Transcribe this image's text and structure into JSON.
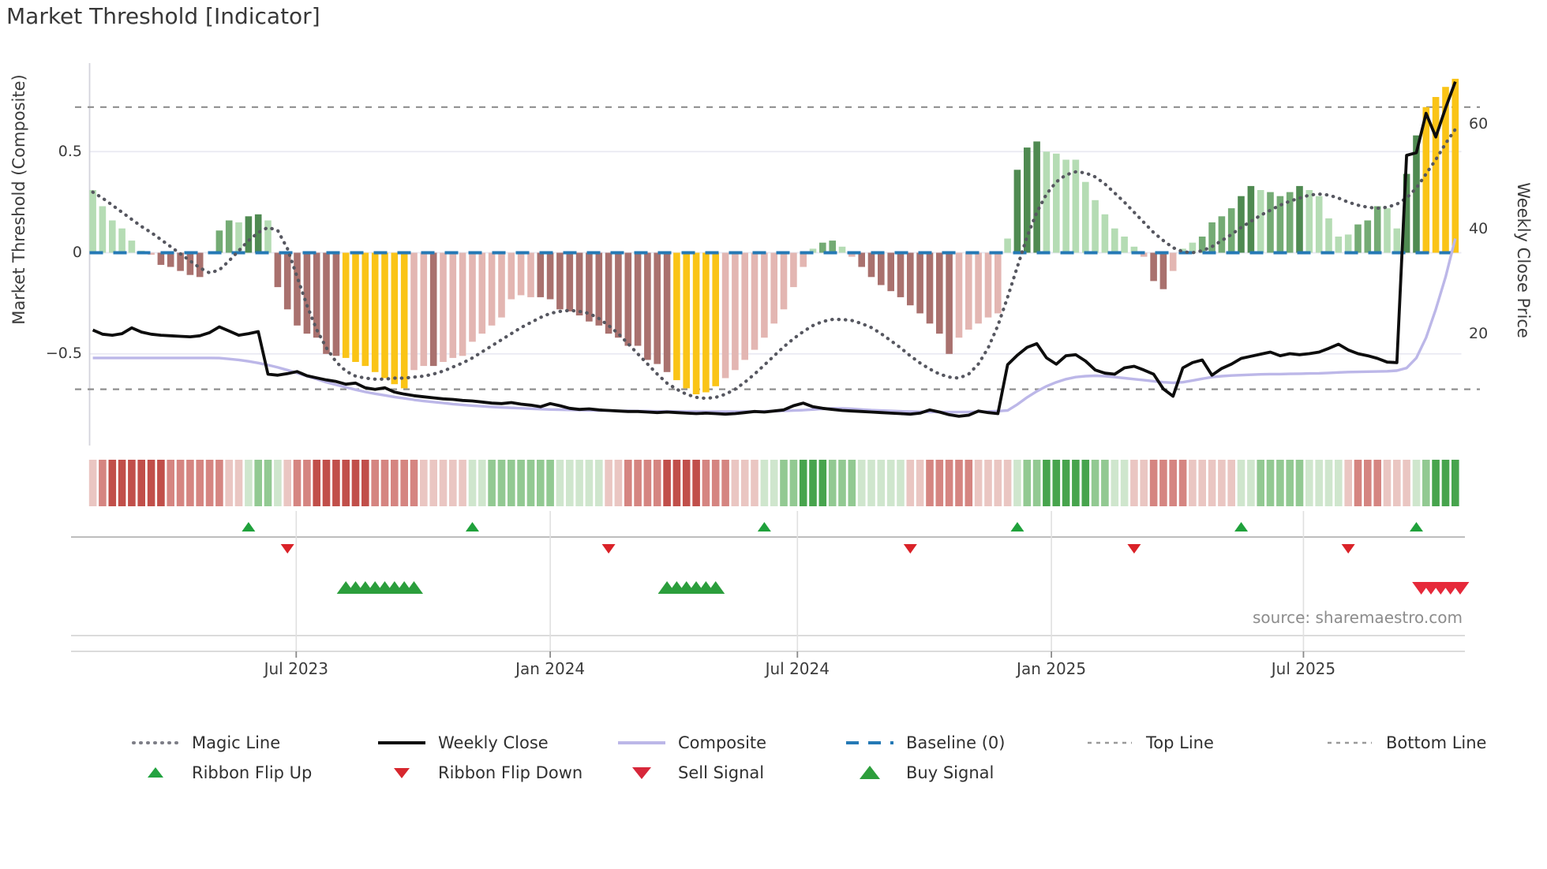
{
  "title": "Market Threshold [Indicator]",
  "source_note": "source: sharemaestro.com",
  "colors": {
    "bar_light_green": "#b5dcb4",
    "bar_green": "#74ab74",
    "bar_dark_green": "#4f8a51",
    "bar_red": "#a9716e",
    "bar_pink": "#e3b6b2",
    "bar_gold": "#fac417",
    "baseline_blue": "#2579b5",
    "magic_line": "#565760",
    "weekly_close": "#0d0d0d",
    "composite": "#bcb7e8",
    "guide_gray": "#8f8f8f",
    "grid": "#e9e9f2",
    "ribbon_dark_red": "#c14f4a",
    "ribbon_red": "#d58581",
    "ribbon_light_red": "#eac6c2",
    "ribbon_light_green": "#cfe6cd",
    "ribbon_green": "#92c992",
    "ribbon_dark_green": "#47a44d",
    "flip_up": "#1fa13b",
    "flip_down": "#da2228",
    "buy": "#2b9e3c",
    "sell": "#e6293a"
  },
  "chart_data": {
    "type": "bar",
    "title": "Market Threshold [Indicator]",
    "left_axis": {
      "label": "Market Threshold (Composite)",
      "ticks": [
        "0.5",
        "0",
        "−0.5"
      ],
      "tick_values": [
        0.5,
        0,
        -0.5
      ],
      "top_line": 0.72,
      "bottom_line": -0.675,
      "baseline": 0
    },
    "right_axis": {
      "label": "Weekly Close Price",
      "ticks": [
        "60",
        "40",
        "20"
      ],
      "tick_values": [
        60,
        40,
        20
      ]
    },
    "x_axis": {
      "tick_labels": [
        "Jul 2023",
        "Jan 2024",
        "Jul 2024",
        "Jan 2025",
        "Jul 2025"
      ],
      "tick_weeks": [
        20.9,
        47.0,
        72.4,
        98.5,
        124.4
      ]
    },
    "histogram": {
      "values": [
        0.31,
        0.23,
        0.16,
        0.12,
        0.06,
        0.01,
        -0.01,
        -0.06,
        -0.07,
        -0.09,
        -0.11,
        -0.12,
        0,
        0.11,
        0.16,
        0.15,
        0.18,
        0.19,
        0.16,
        -0.17,
        -0.28,
        -0.36,
        -0.4,
        -0.42,
        -0.5,
        -0.51,
        -0.52,
        -0.54,
        -0.56,
        -0.59,
        -0.62,
        -0.65,
        -0.67,
        -0.58,
        -0.56,
        -0.56,
        -0.54,
        -0.52,
        -0.51,
        -0.44,
        -0.4,
        -0.36,
        -0.32,
        -0.23,
        -0.21,
        -0.22,
        -0.22,
        -0.23,
        -0.28,
        -0.29,
        -0.31,
        -0.34,
        -0.36,
        -0.4,
        -0.42,
        -0.46,
        -0.46,
        -0.53,
        -0.55,
        -0.59,
        -0.63,
        -0.67,
        -0.7,
        -0.69,
        -0.66,
        -0.62,
        -0.58,
        -0.53,
        -0.48,
        -0.42,
        -0.35,
        -0.28,
        -0.17,
        -0.07,
        0.02,
        0.05,
        0.06,
        0.03,
        -0.02,
        -0.07,
        -0.12,
        -0.16,
        -0.19,
        -0.22,
        -0.26,
        -0.3,
        -0.35,
        -0.4,
        -0.5,
        -0.42,
        -0.38,
        -0.35,
        -0.32,
        -0.3,
        0.07,
        0.41,
        0.52,
        0.55,
        0.5,
        0.49,
        0.46,
        0.46,
        0.35,
        0.26,
        0.19,
        0.12,
        0.08,
        0.03,
        -0.02,
        -0.14,
        -0.18,
        -0.09,
        0.02,
        0.05,
        0.08,
        0.15,
        0.18,
        0.22,
        0.28,
        0.33,
        0.31,
        0.3,
        0.28,
        0.3,
        0.33,
        0.31,
        0.28,
        0.17,
        0.08,
        0.09,
        0.14,
        0.16,
        0.23,
        0.22,
        0.12,
        0.39,
        0.58,
        0.72,
        0.77,
        0.82,
        0.86
      ],
      "classes": [
        "lg",
        "lg",
        "lg",
        "lg",
        "lg",
        "lg",
        "p",
        "r",
        "r",
        "r",
        "r",
        "r",
        "lg",
        "g",
        "g",
        "lg",
        "dg",
        "dg",
        "lg",
        "r",
        "r",
        "r",
        "r",
        "r",
        "r",
        "r",
        "au",
        "au",
        "au",
        "au",
        "au",
        "au",
        "au",
        "p",
        "p",
        "r",
        "p",
        "p",
        "p",
        "p",
        "p",
        "p",
        "p",
        "p",
        "p",
        "p",
        "r",
        "r",
        "r",
        "r",
        "r",
        "r",
        "r",
        "r",
        "r",
        "r",
        "r",
        "r",
        "r",
        "r",
        "au",
        "au",
        "au",
        "au",
        "au",
        "p",
        "p",
        "p",
        "p",
        "p",
        "p",
        "p",
        "p",
        "p",
        "lg",
        "g",
        "g",
        "lg",
        "p",
        "r",
        "r",
        "r",
        "r",
        "r",
        "r",
        "r",
        "r",
        "r",
        "r",
        "p",
        "p",
        "p",
        "p",
        "p",
        "lg",
        "dg",
        "dg",
        "dg",
        "lg",
        "lg",
        "lg",
        "lg",
        "lg",
        "lg",
        "lg",
        "lg",
        "lg",
        "lg",
        "p",
        "r",
        "r",
        "p",
        "lg",
        "lg",
        "g",
        "g",
        "g",
        "g",
        "dg",
        "dg",
        "lg",
        "g",
        "g",
        "g",
        "dg",
        "lg",
        "lg",
        "lg",
        "lg",
        "lg",
        "g",
        "g",
        "g",
        "lg",
        "lg",
        "dg",
        "dg",
        "au",
        "au",
        "au",
        "au"
      ]
    },
    "magic_line": [
      0.3,
      0.27,
      0.235,
      0.2,
      0.165,
      0.13,
      0.1,
      0.065,
      0.03,
      -0.005,
      -0.04,
      -0.075,
      -0.1,
      -0.085,
      -0.04,
      0.01,
      0.06,
      0.1,
      0.125,
      0.11,
      0.02,
      -0.12,
      -0.26,
      -0.38,
      -0.47,
      -0.54,
      -0.585,
      -0.61,
      -0.62,
      -0.625,
      -0.625,
      -0.62,
      -0.62,
      -0.615,
      -0.61,
      -0.6,
      -0.585,
      -0.565,
      -0.545,
      -0.52,
      -0.49,
      -0.46,
      -0.43,
      -0.4,
      -0.37,
      -0.345,
      -0.32,
      -0.3,
      -0.29,
      -0.285,
      -0.29,
      -0.3,
      -0.325,
      -0.36,
      -0.4,
      -0.45,
      -0.5,
      -0.55,
      -0.6,
      -0.645,
      -0.675,
      -0.7,
      -0.715,
      -0.72,
      -0.715,
      -0.7,
      -0.675,
      -0.64,
      -0.6,
      -0.555,
      -0.51,
      -0.465,
      -0.425,
      -0.39,
      -0.36,
      -0.34,
      -0.33,
      -0.33,
      -0.335,
      -0.35,
      -0.37,
      -0.4,
      -0.435,
      -0.47,
      -0.51,
      -0.545,
      -0.575,
      -0.6,
      -0.615,
      -0.62,
      -0.6,
      -0.55,
      -0.47,
      -0.36,
      -0.22,
      -0.07,
      0.08,
      0.2,
      0.29,
      0.35,
      0.385,
      0.4,
      0.395,
      0.375,
      0.34,
      0.295,
      0.25,
      0.2,
      0.15,
      0.1,
      0.06,
      0.025,
      0.005,
      0,
      0.01,
      0.03,
      0.06,
      0.09,
      0.125,
      0.155,
      0.185,
      0.21,
      0.235,
      0.255,
      0.27,
      0.285,
      0.29,
      0.285,
      0.27,
      0.25,
      0.235,
      0.225,
      0.22,
      0.225,
      0.24,
      0.27,
      0.32,
      0.39,
      0.46,
      0.54,
      0.61
    ],
    "composite_line": [
      -0.52,
      -0.52,
      -0.52,
      -0.52,
      -0.52,
      -0.52,
      -0.52,
      -0.52,
      -0.52,
      -0.52,
      -0.52,
      -0.52,
      -0.52,
      -0.521,
      -0.525,
      -0.53,
      -0.537,
      -0.545,
      -0.555,
      -0.567,
      -0.58,
      -0.595,
      -0.61,
      -0.625,
      -0.64,
      -0.653,
      -0.665,
      -0.677,
      -0.688,
      -0.697,
      -0.705,
      -0.713,
      -0.72,
      -0.727,
      -0.733,
      -0.738,
      -0.743,
      -0.748,
      -0.752,
      -0.756,
      -0.759,
      -0.762,
      -0.765,
      -0.767,
      -0.769,
      -0.771,
      -0.773,
      -0.775,
      -0.776,
      -0.777,
      -0.778,
      -0.779,
      -0.78,
      -0.781,
      -0.782,
      -0.782,
      -0.783,
      -0.783,
      -0.784,
      -0.784,
      -0.785,
      -0.785,
      -0.785,
      -0.786,
      -0.786,
      -0.786,
      -0.786,
      -0.785,
      -0.785,
      -0.784,
      -0.783,
      -0.782,
      -0.78,
      -0.778,
      -0.775,
      -0.772,
      -0.77,
      -0.77,
      -0.772,
      -0.775,
      -0.778,
      -0.78,
      -0.782,
      -0.784,
      -0.785,
      -0.786,
      -0.787,
      -0.787,
      -0.788,
      -0.788,
      -0.787,
      -0.786,
      -0.785,
      -0.783,
      -0.78,
      -0.75,
      -0.715,
      -0.685,
      -0.66,
      -0.64,
      -0.625,
      -0.615,
      -0.61,
      -0.608,
      -0.61,
      -0.615,
      -0.62,
      -0.625,
      -0.63,
      -0.635,
      -0.64,
      -0.643,
      -0.64,
      -0.632,
      -0.623,
      -0.615,
      -0.61,
      -0.607,
      -0.605,
      -0.603,
      -0.601,
      -0.6,
      -0.6,
      -0.599,
      -0.598,
      -0.597,
      -0.596,
      -0.594,
      -0.592,
      -0.59,
      -0.589,
      -0.588,
      -0.587,
      -0.586,
      -0.583,
      -0.57,
      -0.52,
      -0.42,
      -0.28,
      -0.12,
      0.07
    ],
    "weekly_close": [
      20.8,
      20,
      19.8,
      20.1,
      21.2,
      20.4,
      20,
      19.8,
      19.7,
      19.6,
      19.5,
      19.7,
      20.3,
      21.4,
      20.6,
      19.8,
      20.1,
      20.5,
      12.4,
      12.2,
      12.5,
      12.9,
      12.1,
      11.7,
      11.3,
      11,
      10.5,
      10.7,
      9.8,
      9.5,
      9.8,
      9,
      8.6,
      8.3,
      8.1,
      7.9,
      7.7,
      7.6,
      7.4,
      7.3,
      7.1,
      6.9,
      6.8,
      7,
      6.7,
      6.5,
      6.2,
      6.8,
      6.4,
      5.9,
      5.7,
      5.8,
      5.6,
      5.5,
      5.4,
      5.3,
      5.3,
      5.2,
      5.1,
      5.2,
      5.1,
      5,
      4.9,
      5,
      4.9,
      4.8,
      4.9,
      5.1,
      5.3,
      5.2,
      5.4,
      5.6,
      6.4,
      6.9,
      6.2,
      5.9,
      5.7,
      5.5,
      5.4,
      5.3,
      5.2,
      5.1,
      5,
      4.9,
      4.8,
      5,
      5.6,
      5.2,
      4.7,
      4.4,
      4.6,
      5.4,
      5.1,
      4.9,
      14.2,
      16,
      17.5,
      18.2,
      15.5,
      14.3,
      15.9,
      16.1,
      14.9,
      13.2,
      12.6,
      12.4,
      13.6,
      13.9,
      13.2,
      12.4,
      9.6,
      8.2,
      13.6,
      14.6,
      15.1,
      12.2,
      13.5,
      14.3,
      15.4,
      15.8,
      16.2,
      16.6,
      15.9,
      16.3,
      16.1,
      16.3,
      16.6,
      17.3,
      18.1,
      17,
      16.3,
      15.9,
      15.4,
      14.7,
      14.6,
      54,
      54.5,
      62,
      57.5,
      63,
      68
    ],
    "ribbon": [
      -1,
      -2,
      -3,
      -3,
      -3,
      -3,
      -3,
      -3,
      -2,
      -2,
      -2,
      -2,
      -2,
      -2,
      -1,
      -1,
      1,
      2,
      2,
      1,
      -1,
      -2,
      -2,
      -3,
      -3,
      -3,
      -3,
      -3,
      -3,
      -2,
      -2,
      -2,
      -2,
      -2,
      -1,
      -1,
      -1,
      -1,
      -1,
      1,
      1,
      2,
      2,
      2,
      2,
      2,
      2,
      2,
      1,
      1,
      1,
      1,
      1,
      -1,
      -1,
      -2,
      -2,
      -2,
      -2,
      -3,
      -3,
      -3,
      -3,
      -2,
      -2,
      -2,
      -1,
      -1,
      -1,
      1,
      1,
      2,
      2,
      3,
      3,
      3,
      2,
      2,
      2,
      1,
      1,
      1,
      1,
      1,
      -1,
      -1,
      -2,
      -2,
      -2,
      -2,
      -2,
      -1,
      -1,
      -1,
      -1,
      1,
      2,
      2,
      3,
      3,
      3,
      3,
      3,
      2,
      2,
      1,
      1,
      -1,
      -1,
      -2,
      -2,
      -2,
      -2,
      -1,
      -1,
      -1,
      -1,
      -1,
      1,
      1,
      2,
      2,
      2,
      2,
      2,
      1,
      1,
      1,
      1,
      -1,
      -2,
      -2,
      -2,
      -1,
      -1,
      -1,
      1,
      2,
      3,
      3,
      3
    ],
    "signals": {
      "flip_up_weeks": [
        16,
        39,
        69,
        95,
        118,
        136
      ],
      "flip_down_weeks": [
        20,
        53,
        84,
        107,
        129
      ],
      "buy_weeks": [
        26,
        27,
        28,
        29,
        30,
        31,
        32,
        33,
        59,
        60,
        61,
        62,
        63,
        64
      ],
      "sell_weeks": [
        136.5,
        137.5,
        138.5,
        139.5,
        140.5
      ]
    }
  },
  "legend": {
    "magic": "Magic Line",
    "close": "Weekly Close",
    "composite": "Composite",
    "baseline": "Baseline (0)",
    "top": "Top Line",
    "bottom": "Bottom Line",
    "flip_up": "Ribbon Flip Up",
    "flip_down": "Ribbon Flip Down",
    "sell": "Sell Signal",
    "buy": "Buy Signal"
  }
}
